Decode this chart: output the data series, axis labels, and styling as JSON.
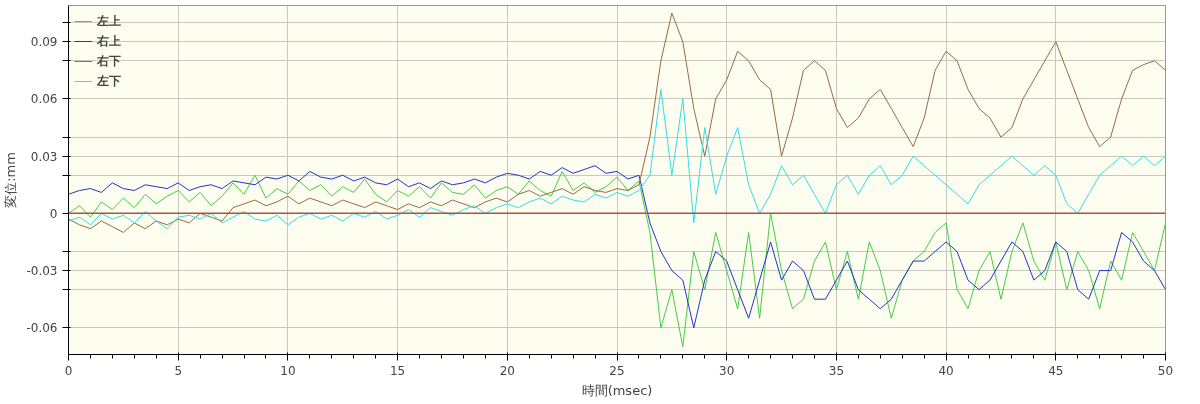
{
  "chart_data": {
    "type": "line",
    "xlabel": "時間(msec)",
    "ylabel": "変位:mm",
    "x": [
      0,
      0.5,
      1,
      1.5,
      2,
      2.5,
      3,
      3.5,
      4,
      4.5,
      5,
      5.5,
      6,
      6.5,
      7,
      7.5,
      8,
      8.5,
      9,
      9.5,
      10,
      10.5,
      11,
      11.5,
      12,
      12.5,
      13,
      13.5,
      14,
      14.5,
      15,
      15.5,
      16,
      16.5,
      17,
      17.5,
      18,
      18.5,
      19,
      19.5,
      20,
      20.5,
      21,
      21.5,
      22,
      22.5,
      23,
      23.5,
      24,
      24.5,
      25,
      25.5,
      26,
      26.5,
      27,
      27.5,
      28,
      28.5,
      29,
      29.5,
      30,
      30.5,
      31,
      31.5,
      32,
      32.5,
      33,
      33.5,
      34,
      34.5,
      35,
      35.5,
      36,
      36.5,
      37,
      37.5,
      38,
      38.5,
      39,
      39.5,
      40,
      40.5,
      41,
      41.5,
      42,
      42.5,
      43,
      43.5,
      44,
      44.5,
      45,
      45.5,
      46,
      46.5,
      47,
      47.5,
      48,
      48.5,
      49,
      49.5,
      50
    ],
    "series": [
      {
        "name": "左上",
        "color": "#44cc44",
        "values": [
          0.0,
          0.004,
          -0.002,
          0.006,
          0.002,
          0.008,
          0.003,
          0.01,
          0.005,
          0.009,
          0.012,
          0.006,
          0.011,
          0.004,
          0.009,
          0.016,
          0.01,
          0.02,
          0.008,
          0.013,
          0.01,
          0.017,
          0.012,
          0.015,
          0.009,
          0.014,
          0.011,
          0.018,
          0.01,
          0.006,
          0.012,
          0.009,
          0.014,
          0.008,
          0.016,
          0.011,
          0.01,
          0.015,
          0.008,
          0.012,
          0.014,
          0.01,
          0.017,
          0.012,
          0.009,
          0.022,
          0.012,
          0.016,
          0.011,
          0.014,
          0.019,
          0.012,
          0.017,
          -0.01,
          -0.06,
          -0.04,
          -0.07,
          -0.02,
          -0.04,
          -0.01,
          -0.03,
          -0.05,
          -0.01,
          -0.055,
          0.0,
          -0.03,
          -0.05,
          -0.045,
          -0.025,
          -0.015,
          -0.04,
          -0.02,
          -0.045,
          -0.015,
          -0.03,
          -0.055,
          -0.035,
          -0.025,
          -0.02,
          -0.01,
          -0.005,
          -0.04,
          -0.05,
          -0.03,
          -0.02,
          -0.045,
          -0.02,
          -0.005,
          -0.025,
          -0.035,
          -0.015,
          -0.04,
          -0.02,
          -0.03,
          -0.05,
          -0.025,
          -0.035,
          -0.01,
          -0.02,
          -0.03,
          -0.005
        ]
      },
      {
        "name": "右上",
        "color": "#2233cc",
        "values": [
          0.01,
          0.012,
          0.013,
          0.011,
          0.016,
          0.013,
          0.012,
          0.015,
          0.014,
          0.013,
          0.016,
          0.012,
          0.014,
          0.015,
          0.013,
          0.017,
          0.016,
          0.015,
          0.019,
          0.018,
          0.02,
          0.017,
          0.022,
          0.019,
          0.018,
          0.02,
          0.017,
          0.019,
          0.016,
          0.015,
          0.018,
          0.014,
          0.016,
          0.013,
          0.017,
          0.015,
          0.016,
          0.018,
          0.016,
          0.019,
          0.021,
          0.02,
          0.018,
          0.022,
          0.02,
          0.024,
          0.021,
          0.023,
          0.025,
          0.021,
          0.022,
          0.018,
          0.02,
          -0.005,
          -0.02,
          -0.03,
          -0.035,
          -0.06,
          -0.035,
          -0.02,
          -0.025,
          -0.04,
          -0.055,
          -0.035,
          -0.015,
          -0.035,
          -0.025,
          -0.03,
          -0.045,
          -0.045,
          -0.035,
          -0.025,
          -0.04,
          -0.045,
          -0.05,
          -0.045,
          -0.035,
          -0.025,
          -0.025,
          -0.02,
          -0.015,
          -0.02,
          -0.035,
          -0.04,
          -0.035,
          -0.025,
          -0.015,
          -0.02,
          -0.035,
          -0.03,
          -0.015,
          -0.02,
          -0.04,
          -0.045,
          -0.03,
          -0.03,
          -0.01,
          -0.015,
          -0.025,
          -0.03,
          -0.04
        ]
      },
      {
        "name": "右下",
        "color": "#9a6a40",
        "values": [
          -0.003,
          -0.006,
          -0.008,
          -0.004,
          -0.007,
          -0.01,
          -0.005,
          -0.008,
          -0.004,
          -0.006,
          -0.003,
          -0.005,
          0.0,
          -0.002,
          -0.004,
          0.003,
          0.005,
          0.007,
          0.004,
          0.006,
          0.009,
          0.005,
          0.008,
          0.006,
          0.004,
          0.007,
          0.005,
          0.003,
          0.006,
          0.004,
          0.002,
          0.005,
          0.003,
          0.006,
          0.004,
          0.007,
          0.005,
          0.003,
          0.006,
          0.008,
          0.006,
          0.01,
          0.012,
          0.009,
          0.011,
          0.013,
          0.01,
          0.014,
          0.012,
          0.011,
          0.013,
          0.012,
          0.015,
          0.04,
          0.08,
          0.105,
          0.09,
          0.055,
          0.03,
          0.06,
          0.07,
          0.085,
          0.08,
          0.07,
          0.065,
          0.03,
          0.05,
          0.075,
          0.08,
          0.075,
          0.055,
          0.045,
          0.05,
          0.06,
          0.065,
          0.055,
          0.045,
          0.035,
          0.05,
          0.075,
          0.085,
          0.08,
          0.065,
          0.055,
          0.05,
          0.04,
          0.045,
          0.06,
          0.07,
          0.08,
          0.09,
          0.075,
          0.06,
          0.045,
          0.035,
          0.04,
          0.06,
          0.075,
          0.078,
          0.08,
          0.075
        ]
      },
      {
        "name": "左下",
        "color": "#33dde8",
        "values": [
          -0.004,
          -0.002,
          -0.006,
          0.0,
          -0.003,
          -0.001,
          -0.005,
          0.001,
          -0.004,
          -0.008,
          -0.002,
          -0.001,
          -0.003,
          0.0,
          -0.005,
          -0.002,
          0.001,
          -0.003,
          -0.004,
          -0.001,
          -0.006,
          -0.002,
          0.0,
          -0.003,
          -0.001,
          -0.004,
          0.0,
          -0.002,
          0.001,
          -0.003,
          -0.001,
          0.002,
          -0.002,
          0.003,
          0.001,
          -0.001,
          0.002,
          0.004,
          0.0,
          0.003,
          0.005,
          0.003,
          0.006,
          0.008,
          0.005,
          0.009,
          0.007,
          0.006,
          0.01,
          0.008,
          0.011,
          0.009,
          0.012,
          0.02,
          0.065,
          0.02,
          0.06,
          -0.005,
          0.045,
          0.01,
          0.03,
          0.045,
          0.015,
          0.0,
          0.01,
          0.025,
          0.015,
          0.02,
          0.01,
          0.0,
          0.015,
          0.02,
          0.01,
          0.02,
          0.025,
          0.015,
          0.02,
          0.03,
          0.025,
          0.02,
          0.015,
          0.01,
          0.005,
          0.015,
          0.02,
          0.025,
          0.03,
          0.025,
          0.02,
          0.025,
          0.02,
          0.005,
          0.0,
          0.01,
          0.02,
          0.025,
          0.03,
          0.025,
          0.03,
          0.025,
          0.03
        ]
      }
    ],
    "xlim": [
      0,
      50
    ],
    "xticks": [
      0,
      5,
      10,
      15,
      20,
      25,
      30,
      35,
      40,
      45,
      50
    ],
    "ylim": [
      -0.074,
      0.109
    ],
    "yticks": [
      -0.06,
      -0.03,
      0,
      0.03,
      0.06,
      0.09,
      {
        "value": -0.04,
        "label": null
      },
      {
        "value": -0.02,
        "label": null
      },
      {
        "value": 0.02,
        "label": null
      },
      {
        "value": 0.04,
        "label": null
      },
      {
        "value": 0.08,
        "label": null
      },
      {
        "value": 0.1,
        "label": null
      }
    ],
    "ref_lines": [
      {
        "axis": "y",
        "value": 0,
        "color": "#b05040"
      }
    ],
    "grid": true,
    "legend": "top left",
    "line_style": "solid",
    "marker": "none"
  }
}
